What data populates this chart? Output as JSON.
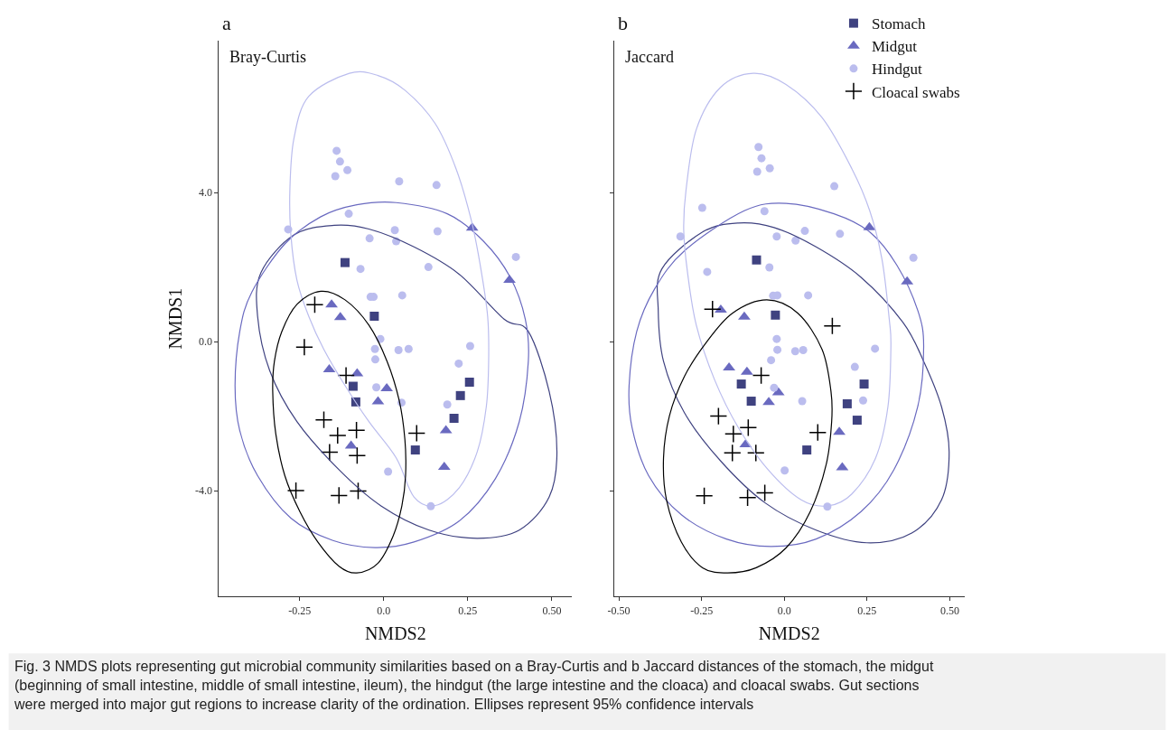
{
  "chart_data": [
    {
      "type": "scatter",
      "title": "a",
      "xlabel": "NMDS2",
      "ylabel": "NMDS1",
      "annotations": [
        "Bray-Curtis"
      ],
      "xlim": [
        -0.49,
        0.56
      ],
      "ylim": [
        -6.84,
        8.07
      ],
      "xticks": [
        {
          "value": -0.25,
          "label": "-0.25"
        },
        {
          "value": 0,
          "label": "0.0"
        },
        {
          "value": 0.25,
          "label": "0.25"
        },
        {
          "value": 0.5,
          "label": "0.50"
        }
      ],
      "yticks": [
        {
          "value": -4,
          "label": "-4.0"
        },
        {
          "value": 0,
          "label": "0.0"
        },
        {
          "value": 4,
          "label": "4.0"
        }
      ],
      "grid": false,
      "legend": false,
      "series": [
        {
          "color": "#3f4280",
          "marker": "square",
          "x": [
            -0.115,
            -0.028,
            -0.091,
            -0.083,
            0.255,
            0.228,
            0.209,
            0.094
          ],
          "values": [
            2.12,
            0.68,
            -1.2,
            -1.62,
            -1.09,
            -1.45,
            -2.06,
            -2.91
          ]
        },
        {
          "color": "#6a6ac0",
          "marker": "triangle",
          "x": [
            0.263,
            0.374,
            -0.155,
            -0.129,
            -0.162,
            -0.079,
            0.009,
            -0.017,
            0.185,
            -0.097,
            0.18
          ],
          "values": [
            3.05,
            1.65,
            0.99,
            0.65,
            -0.75,
            -0.86,
            -1.26,
            -1.61,
            -2.39,
            -2.8,
            -3.37
          ]
        },
        {
          "color": "#bbbdee",
          "marker": "circle",
          "x": [
            -0.14,
            -0.13,
            -0.108,
            -0.144,
            0.046,
            0.157,
            -0.104,
            -0.284,
            0.033,
            0.16,
            -0.042,
            0.037,
            0.393,
            -0.069,
            0.133,
            -0.039,
            -0.03,
            0.055,
            -0.01,
            -0.026,
            0.044,
            0.074,
            0.257,
            -0.025,
            0.223,
            -0.022,
            0.053,
            0.189,
            0.013,
            0.14
          ],
          "values": [
            5.12,
            4.83,
            4.6,
            4.44,
            4.3,
            4.2,
            3.43,
            3.01,
            2.99,
            2.96,
            2.77,
            2.69,
            2.27,
            1.95,
            2.0,
            1.2,
            1.2,
            1.24,
            0.07,
            -0.2,
            -0.23,
            -0.2,
            -0.12,
            -0.48,
            -0.59,
            -1.23,
            -1.64,
            -1.69,
            -3.49,
            -4.42
          ]
        },
        {
          "color": "#000000",
          "marker": "cross",
          "x": [
            -0.205,
            -0.236,
            -0.112,
            -0.178,
            -0.081,
            -0.137,
            0.098,
            -0.161,
            -0.079,
            -0.261,
            -0.133,
            -0.076
          ],
          "values": [
            0.99,
            -0.15,
            -0.91,
            -2.1,
            -2.38,
            -2.52,
            -2.46,
            -2.97,
            -3.06,
            -4.0,
            -4.13,
            -4.01
          ]
        }
      ]
    },
    {
      "type": "scatter",
      "title": "b",
      "xlabel": "NMDS2",
      "annotations": [
        "Jaccard",
        "Fig. 3 NMDS plots representing gut microbial community similarities based on a Bray-Curtis and b Jaccard distances of the stomach, the midgut\n(beginning of small intestine, middle of small intestine, ileum), the hindgut (the large intestine and the cloaca) and cloacal swabs. Gut sections\nwere merged into major gut regions to increase clarity of the ordination. Ellipses represent 95% confidence intervals"
      ],
      "xlim": [
        -0.515,
        0.545
      ],
      "ylim": [
        -6.84,
        8.07
      ],
      "xticks": [
        {
          "value": -0.5,
          "label": "-0.50"
        },
        {
          "value": -0.25,
          "label": "-0.25"
        },
        {
          "value": 0,
          "label": "0.0"
        },
        {
          "value": 0.25,
          "label": "0.25"
        },
        {
          "value": 0.5,
          "label": "0.50"
        }
      ],
      "yticks": [
        {
          "value": -4,
          "label": null
        },
        {
          "value": 0,
          "label": null
        },
        {
          "value": 4,
          "label": null
        }
      ],
      "tick_labels": "x",
      "grid": false,
      "legend": "top right",
      "series": [
        {
          "name": "Stomach",
          "color": "#3f4280",
          "marker": "square",
          "x": [
            -0.084,
            -0.027,
            -0.13,
            -0.1,
            0.241,
            0.19,
            0.22,
            0.068
          ],
          "values": [
            2.19,
            0.71,
            -1.14,
            -1.6,
            -1.14,
            -1.67,
            -2.11,
            -2.91
          ]
        },
        {
          "name": "Midgut",
          "color": "#6a6ac0",
          "marker": "triangle",
          "x": [
            0.257,
            0.371,
            -0.192,
            -0.121,
            -0.167,
            -0.113,
            -0.018,
            -0.047,
            0.166,
            -0.117,
            0.175
          ],
          "values": [
            3.06,
            1.61,
            0.85,
            0.66,
            -0.7,
            -0.82,
            -1.37,
            -1.63,
            -2.43,
            -2.76,
            -3.38
          ]
        },
        {
          "name": "Hindgut",
          "color": "#bbbdee",
          "marker": "circle",
          "x": [
            -0.078,
            -0.069,
            -0.044,
            -0.082,
            0.151,
            -0.248,
            -0.06,
            -0.314,
            -0.023,
            0.062,
            0.168,
            0.034,
            0.39,
            -0.233,
            -0.045,
            -0.034,
            -0.021,
            0.072,
            -0.023,
            -0.021,
            0.033,
            0.057,
            0.274,
            -0.04,
            0.213,
            -0.031,
            0.054,
            0.238,
            0.001,
            0.13
          ],
          "values": [
            5.22,
            4.92,
            4.65,
            4.56,
            4.17,
            3.59,
            3.5,
            2.82,
            2.82,
            2.97,
            2.89,
            2.71,
            2.25,
            1.87,
            1.99,
            1.23,
            1.24,
            1.24,
            0.07,
            -0.22,
            -0.26,
            -0.23,
            -0.19,
            -0.5,
            -0.68,
            -1.24,
            -1.6,
            -1.58,
            -3.46,
            -4.43
          ]
        },
        {
          "name": "Cloacal swabs",
          "color": "#000000",
          "marker": "cross",
          "x": [
            -0.217,
            0.145,
            -0.07,
            -0.199,
            -0.109,
            -0.154,
            0.101,
            -0.157,
            -0.086,
            -0.242,
            -0.111,
            -0.059
          ],
          "values": [
            0.87,
            0.42,
            -0.91,
            -2.0,
            -2.31,
            -2.48,
            -2.44,
            -2.99,
            -2.99,
            -4.14,
            -4.19,
            -4.06
          ]
        }
      ]
    }
  ]
}
